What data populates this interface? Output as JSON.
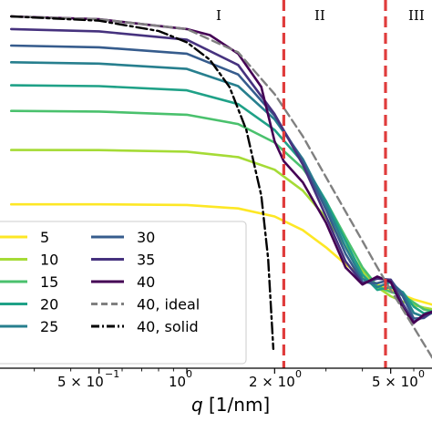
{
  "chart_data": {
    "type": "line",
    "xlabel_var": "q",
    "xlabel_unit": "[1/nm]",
    "x_scale": "log",
    "y_scale": "log",
    "grid": false,
    "legend_placement": "lower-left",
    "x_tick_labels": [
      "5 × 10",
      "−1",
      "10",
      "0",
      "2 × 10",
      "0",
      "5 × 10",
      "0"
    ],
    "vertical_markers": [
      {
        "q": 2.15,
        "color": "#e03c3c",
        "style": "dashed"
      },
      {
        "q": 4.8,
        "color": "#e03c3c",
        "style": "dashed"
      }
    ],
    "region_labels": [
      "I",
      "II",
      "III"
    ],
    "series": [
      {
        "name": "5",
        "color": "#fde725",
        "style": "solid",
        "points": [
          [
            0.25,
            0.12
          ],
          [
            0.5,
            0.12
          ],
          [
            1.0,
            0.118
          ],
          [
            1.5,
            0.108
          ],
          [
            2.0,
            0.088
          ],
          [
            2.5,
            0.062
          ],
          [
            3.0,
            0.04
          ],
          [
            3.5,
            0.026
          ],
          [
            4.0,
            0.019
          ],
          [
            4.5,
            0.0155
          ],
          [
            5.0,
            0.0135
          ],
          [
            5.5,
            0.0118
          ],
          [
            6.0,
            0.0106
          ],
          [
            7.0,
            0.0092
          ]
        ]
      },
      {
        "name": "10",
        "color": "#a5db36",
        "style": "solid",
        "points": [
          [
            0.25,
            0.48
          ],
          [
            0.5,
            0.478
          ],
          [
            1.0,
            0.46
          ],
          [
            1.5,
            0.4
          ],
          [
            2.0,
            0.29
          ],
          [
            2.5,
            0.17
          ],
          [
            3.0,
            0.085
          ],
          [
            3.5,
            0.041
          ],
          [
            4.0,
            0.022
          ],
          [
            4.5,
            0.0145
          ],
          [
            5.0,
            0.0115
          ],
          [
            5.5,
            0.01
          ],
          [
            6.0,
            0.0092
          ],
          [
            6.5,
            0.0086
          ],
          [
            7.0,
            0.0082
          ]
        ]
      },
      {
        "name": "15",
        "color": "#4ac16d",
        "style": "solid",
        "points": [
          [
            0.25,
            1.3
          ],
          [
            0.5,
            1.28
          ],
          [
            1.0,
            1.18
          ],
          [
            1.5,
            0.93
          ],
          [
            2.0,
            0.58
          ],
          [
            2.5,
            0.3
          ],
          [
            3.0,
            0.13
          ],
          [
            3.5,
            0.052
          ],
          [
            4.0,
            0.024
          ],
          [
            4.5,
            0.0148
          ],
          [
            5.0,
            0.0128
          ],
          [
            5.5,
            0.0118
          ],
          [
            6.0,
            0.0098
          ],
          [
            6.5,
            0.0082
          ],
          [
            7.0,
            0.0078
          ]
        ]
      },
      {
        "name": "20",
        "color": "#1fa187",
        "style": "solid",
        "points": [
          [
            0.25,
            2.5
          ],
          [
            0.5,
            2.45
          ],
          [
            1.0,
            2.2
          ],
          [
            1.5,
            1.55
          ],
          [
            2.0,
            0.8
          ],
          [
            2.5,
            0.35
          ],
          [
            3.0,
            0.13
          ],
          [
            3.5,
            0.047
          ],
          [
            4.0,
            0.02
          ],
          [
            4.5,
            0.0135
          ],
          [
            5.0,
            0.0145
          ],
          [
            5.5,
            0.0128
          ],
          [
            6.0,
            0.0088
          ],
          [
            6.5,
            0.0074
          ],
          [
            7.0,
            0.0078
          ]
        ]
      },
      {
        "name": "25",
        "color": "#277f8e",
        "style": "solid",
        "points": [
          [
            0.25,
            4.5
          ],
          [
            0.5,
            4.35
          ],
          [
            1.0,
            3.8
          ],
          [
            1.5,
            2.45
          ],
          [
            2.0,
            1.05
          ],
          [
            2.5,
            0.38
          ],
          [
            3.0,
            0.12
          ],
          [
            3.5,
            0.04
          ],
          [
            4.0,
            0.018
          ],
          [
            4.5,
            0.0145
          ],
          [
            5.0,
            0.0165
          ],
          [
            5.5,
            0.0125
          ],
          [
            6.0,
            0.0075
          ],
          [
            6.5,
            0.0068
          ],
          [
            7.0,
            0.0076
          ]
        ]
      },
      {
        "name": "30",
        "color": "#365c8d",
        "style": "solid",
        "points": [
          [
            0.25,
            6.9
          ],
          [
            0.5,
            6.6
          ],
          [
            1.0,
            5.6
          ],
          [
            1.5,
            3.3
          ],
          [
            2.0,
            1.15
          ],
          [
            2.5,
            0.36
          ],
          [
            3.0,
            0.105
          ],
          [
            3.5,
            0.034
          ],
          [
            4.0,
            0.0165
          ],
          [
            4.5,
            0.016
          ],
          [
            5.0,
            0.0175
          ],
          [
            5.5,
            0.0115
          ],
          [
            6.0,
            0.0065
          ],
          [
            6.5,
            0.0066
          ],
          [
            7.0,
            0.0078
          ]
        ]
      },
      {
        "name": "35",
        "color": "#46327e",
        "style": "solid",
        "points": [
          [
            0.25,
            10.5
          ],
          [
            0.5,
            9.9
          ],
          [
            1.0,
            8.0
          ],
          [
            1.5,
            4.2
          ],
          [
            2.0,
            1.2
          ],
          [
            2.5,
            0.33
          ],
          [
            3.0,
            0.088
          ],
          [
            3.5,
            0.028
          ],
          [
            4.0,
            0.016
          ],
          [
            4.5,
            0.018
          ],
          [
            5.0,
            0.0175
          ],
          [
            5.5,
            0.0095
          ],
          [
            6.0,
            0.006
          ],
          [
            6.5,
            0.0068
          ],
          [
            7.0,
            0.0078
          ]
        ]
      },
      {
        "name": "40",
        "color": "#440154",
        "style": "solid",
        "points": [
          [
            0.25,
            14.5
          ],
          [
            0.5,
            13.5
          ],
          [
            1.0,
            10.5
          ],
          [
            1.2,
            9.0
          ],
          [
            1.5,
            5.6
          ],
          [
            1.8,
            2.4
          ],
          [
            2.0,
            0.6
          ],
          [
            2.15,
            0.36
          ],
          [
            2.5,
            0.21
          ],
          [
            3.0,
            0.075
          ],
          [
            3.5,
            0.024
          ],
          [
            4.0,
            0.0155
          ],
          [
            4.5,
            0.019
          ],
          [
            5.0,
            0.0165
          ],
          [
            5.5,
            0.0085
          ],
          [
            6.0,
            0.0058
          ],
          [
            6.5,
            0.0072
          ],
          [
            7.0,
            0.0078
          ]
        ]
      },
      {
        "name": "40, ideal",
        "color": "#808080",
        "style": "dashed",
        "points": [
          [
            0.25,
            14.5
          ],
          [
            0.5,
            13.5
          ],
          [
            1.0,
            10.5
          ],
          [
            1.5,
            5.8
          ],
          [
            2.0,
            2.0
          ],
          [
            2.5,
            0.68
          ],
          [
            3.0,
            0.24
          ],
          [
            3.5,
            0.1
          ],
          [
            4.0,
            0.047
          ],
          [
            4.5,
            0.024
          ],
          [
            5.0,
            0.0135
          ],
          [
            5.5,
            0.0082
          ],
          [
            6.0,
            0.0052
          ],
          [
            6.5,
            0.0034
          ],
          [
            7.0,
            0.0023
          ]
        ]
      },
      {
        "name": "40, solid",
        "color": "#000000",
        "style": "dashdot",
        "points": [
          [
            0.25,
            14.5
          ],
          [
            0.5,
            13.0
          ],
          [
            0.8,
            10.0
          ],
          [
            1.0,
            7.5
          ],
          [
            1.2,
            4.8
          ],
          [
            1.4,
            2.4
          ],
          [
            1.6,
            0.8
          ],
          [
            1.8,
            0.15
          ],
          [
            1.9,
            0.03
          ],
          [
            1.98,
            0.003
          ]
        ]
      }
    ]
  }
}
